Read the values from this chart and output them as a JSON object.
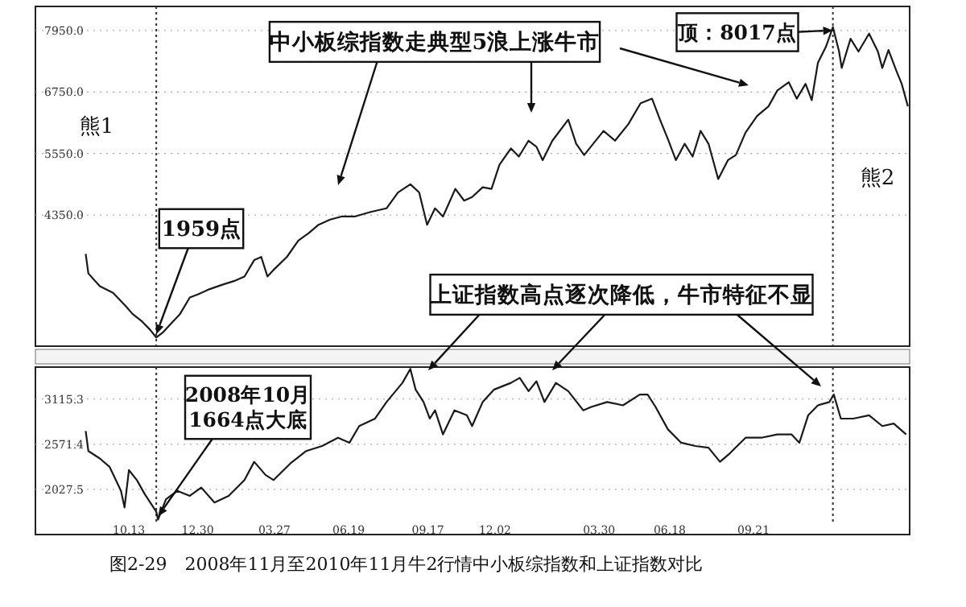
{
  "chart_data": [
    {
      "type": "line",
      "ylim": [
        1790,
        8420
      ],
      "yticks": [
        {
          "value": 4350,
          "label": "4350.0"
        },
        {
          "value": 5550,
          "label": "5550.0"
        },
        {
          "value": 6750,
          "label": "6750.0"
        },
        {
          "value": 7950,
          "label": "7950.0"
        }
      ],
      "xlim": [
        "2008-06-29",
        "2011-03-17"
      ],
      "tick_labels": "y",
      "grid": "y",
      "series": [
        {
          "color": "#1a1a1a",
          "x": [
            "2008-08-25",
            "2008-08-28",
            "2008-09-10",
            "2008-09-25",
            "2008-10-09",
            "2008-10-17",
            "2008-10-28",
            "2008-11-06",
            "2008-11-13",
            "2008-11-20",
            "2008-11-28",
            "2008-12-10",
            "2008-12-21",
            "2008-12-30",
            "2009-01-12",
            "2009-01-27",
            "2009-02-09",
            "2009-02-21",
            "2009-03-04",
            "2009-03-12",
            "2009-03-19",
            "2009-03-26",
            "2009-04-10",
            "2009-04-23",
            "2009-05-05",
            "2009-05-16",
            "2009-05-29",
            "2009-06-11",
            "2009-06-26",
            "2009-07-14",
            "2009-08-01",
            "2009-08-14",
            "2009-08-28",
            "2009-09-07",
            "2009-09-16",
            "2009-09-25",
            "2009-10-04",
            "2009-10-18",
            "2009-10-28",
            "2009-11-06",
            "2009-11-18",
            "2009-11-28",
            "2009-12-07",
            "2009-12-20",
            "2009-12-29",
            "2010-01-09",
            "2010-01-18",
            "2010-01-25",
            "2010-02-05",
            "2010-02-23",
            "2010-03-04",
            "2010-03-13",
            "2010-04-04",
            "2010-04-17",
            "2010-05-02",
            "2010-05-16",
            "2010-05-29",
            "2010-06-07",
            "2010-06-16",
            "2010-06-25",
            "2010-07-05",
            "2010-07-14",
            "2010-07-23",
            "2010-08-01",
            "2010-08-12",
            "2010-08-23",
            "2010-09-01",
            "2010-09-12",
            "2010-09-25",
            "2010-10-08",
            "2010-10-18",
            "2010-10-31",
            "2010-11-09",
            "2010-11-19",
            "2010-11-26",
            "2010-12-03",
            "2010-12-12",
            "2010-12-20",
            "2010-12-27",
            "2010-12-30",
            "2011-01-09",
            "2011-01-18",
            "2011-01-30",
            "2011-02-09",
            "2011-02-14",
            "2011-02-21",
            "2011-03-02",
            "2011-03-08",
            "2011-03-15"
          ],
          "values": [
            3590,
            3210,
            2960,
            2830,
            2580,
            2420,
            2270,
            2110,
            1959,
            2050,
            2200,
            2420,
            2740,
            2800,
            2900,
            2990,
            3060,
            3150,
            3470,
            3530,
            3150,
            3280,
            3530,
            3850,
            4000,
            4160,
            4260,
            4320,
            4320,
            4410,
            4480,
            4790,
            4950,
            4790,
            4160,
            4480,
            4320,
            4860,
            4630,
            4700,
            4890,
            4860,
            5330,
            5650,
            5490,
            5800,
            5680,
            5420,
            5800,
            6210,
            5740,
            5520,
            5990,
            5800,
            6120,
            6530,
            6620,
            6210,
            5830,
            5420,
            5740,
            5490,
            5990,
            5740,
            5050,
            5420,
            5520,
            5960,
            6280,
            6470,
            6780,
            6940,
            6620,
            6910,
            6590,
            7320,
            7630,
            8017,
            7540,
            7220,
            7790,
            7540,
            7890,
            7540,
            7220,
            7570,
            7160,
            6910,
            6470
          ]
        }
      ],
      "ref_lines": [
        {
          "axis": "x",
          "value": "2008-11-13",
          "line_style": "dotted"
        },
        {
          "axis": "x",
          "value": "2010-12-20",
          "line_style": "dotted"
        }
      ],
      "annotations": [
        "熊1",
        {
          "text": "1959点",
          "x": "2008-11-13",
          "y": 1959
        },
        "中小板综指数走典型5浪上涨牛市",
        {
          "text": "顶：8017点",
          "x": "2010-12-20",
          "y": 8017
        },
        "熊2"
      ]
    },
    {
      "type": "line",
      "ylim": [
        1620,
        3500
      ],
      "yticks": [
        {
          "value": 2027.5,
          "label": "2027.5"
        },
        {
          "value": 2571.4,
          "label": "2571.4"
        },
        {
          "value": 3115.3,
          "label": "3115.3"
        }
      ],
      "xlim": [
        "2008-06-29",
        "2011-03-17"
      ],
      "xticks": [
        {
          "value": "2008-10-13",
          "label": "10.13"
        },
        {
          "value": "2008-12-30",
          "label": "12.30"
        },
        {
          "value": "2009-03-27",
          "label": "03.27"
        },
        {
          "value": "2009-06-19",
          "label": "06.19"
        },
        {
          "value": "2009-09-17",
          "label": "09.17"
        },
        {
          "value": "2009-12-02",
          "label": "12.02"
        },
        {
          "value": "2010-03-30",
          "label": "03.30"
        },
        {
          "value": "2010-06-18",
          "label": "06.18"
        },
        {
          "value": "2010-09-21",
          "label": "09.21"
        }
      ],
      "grid": "y",
      "series": [
        {
          "color": "#1a1a1a",
          "x": [
            "2008-08-25",
            "2008-08-28",
            "2008-09-10",
            "2008-09-21",
            "2008-10-04",
            "2008-10-08",
            "2008-10-13",
            "2008-10-22",
            "2008-10-31",
            "2008-11-13",
            "2008-11-15",
            "2008-11-24",
            "2008-12-07",
            "2008-12-21",
            "2009-01-03",
            "2009-01-18",
            "2009-02-03",
            "2009-02-21",
            "2009-03-04",
            "2009-03-17",
            "2009-03-26",
            "2009-04-14",
            "2009-05-02",
            "2009-05-20",
            "2009-06-07",
            "2009-06-20",
            "2009-07-01",
            "2009-07-19",
            "2009-08-01",
            "2009-08-19",
            "2009-08-28",
            "2009-09-03",
            "2009-09-12",
            "2009-09-19",
            "2009-09-25",
            "2009-10-04",
            "2009-10-17",
            "2009-10-31",
            "2009-11-06",
            "2009-11-18",
            "2009-12-01",
            "2009-12-20",
            "2009-12-30",
            "2010-01-09",
            "2010-01-18",
            "2010-01-27",
            "2010-02-09",
            "2010-02-23",
            "2010-03-12",
            "2010-03-21",
            "2010-04-08",
            "2010-04-26",
            "2010-05-15",
            "2010-05-24",
            "2010-06-02",
            "2010-06-16",
            "2010-07-01",
            "2010-07-17",
            "2010-08-01",
            "2010-08-14",
            "2010-08-25",
            "2010-09-12",
            "2010-09-30",
            "2010-10-18",
            "2010-11-03",
            "2010-11-12",
            "2010-11-22",
            "2010-12-03",
            "2010-12-16",
            "2010-12-21",
            "2010-12-29",
            "2011-01-12",
            "2011-01-30",
            "2011-02-14",
            "2011-02-27",
            "2011-03-13"
          ],
          "values": [
            2730,
            2490,
            2400,
            2300,
            2010,
            1810,
            2260,
            2140,
            1970,
            1760,
            1664,
            1910,
            2010,
            1950,
            2050,
            1870,
            1950,
            2140,
            2360,
            2200,
            2140,
            2340,
            2490,
            2550,
            2650,
            2590,
            2790,
            2880,
            3080,
            3310,
            3478,
            3230,
            3080,
            2880,
            2980,
            2690,
            2980,
            2920,
            2790,
            3080,
            3230,
            3310,
            3370,
            3210,
            3330,
            3080,
            3310,
            3210,
            2980,
            3020,
            3080,
            3040,
            3170,
            3170,
            3020,
            2750,
            2590,
            2550,
            2530,
            2360,
            2460,
            2650,
            2650,
            2690,
            2690,
            2590,
            2920,
            3040,
            3080,
            3170,
            2880,
            2880,
            2920,
            2790,
            2820,
            2690
          ]
        }
      ],
      "ref_lines": [
        {
          "axis": "x",
          "value": "2008-11-13",
          "line_style": "dotted"
        },
        {
          "axis": "x",
          "value": "2010-12-20",
          "line_style": "dotted"
        }
      ],
      "annotations": [
        "上证指数高点逐次降低，牛市特征不显",
        {
          "text": "2008年10月\n1664点大底",
          "x": "2008-11-15",
          "y": 1664
        },
        "图2-29　2008年11月至2010年11月牛2行情中小板综指数和上证指数对比"
      ]
    }
  ]
}
